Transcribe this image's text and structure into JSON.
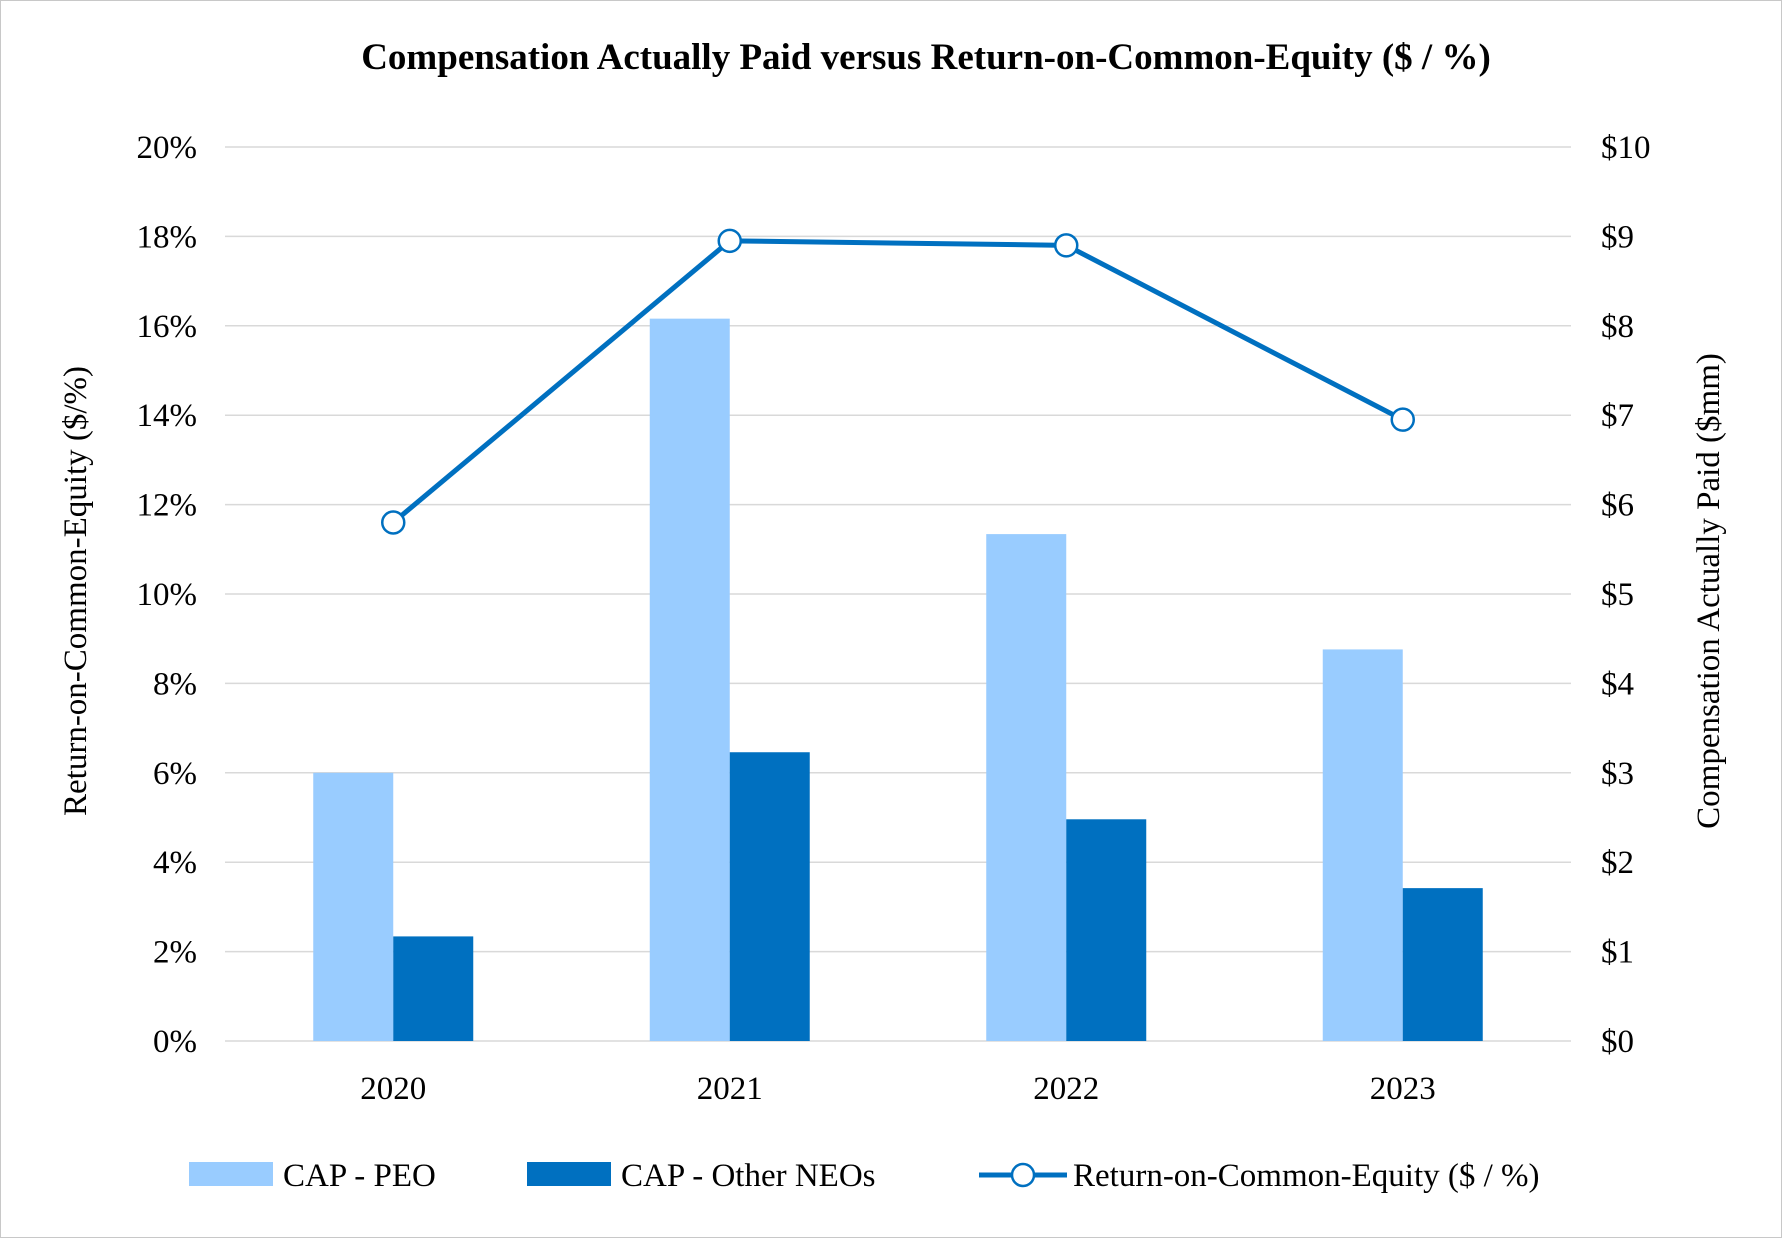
{
  "chart_data": {
    "type": "bar",
    "title": "Compensation Actually Paid versus Return-on-Common-Equity ($ / %)",
    "categories": [
      "2020",
      "2021",
      "2022",
      "2023"
    ],
    "left_axis": {
      "label": "Return-on-Common-Equity ($/%)",
      "range": [
        0,
        20
      ],
      "tick_values": [
        0,
        2,
        4,
        6,
        8,
        10,
        12,
        14,
        16,
        18,
        20
      ],
      "tick_labels": [
        "0%",
        "2%",
        "4%",
        "6%",
        "8%",
        "10%",
        "12%",
        "14%",
        "16%",
        "18%",
        "20%"
      ]
    },
    "right_axis": {
      "label": "Compensation Actually Paid ($mm)",
      "range": [
        0,
        10
      ],
      "tick_values": [
        0,
        1,
        2,
        3,
        4,
        5,
        6,
        7,
        8,
        9,
        10
      ],
      "tick_labels": [
        "$0",
        "$1",
        "$2",
        "$3",
        "$4",
        "$5",
        "$6",
        "$7",
        "$8",
        "$9",
        "$10"
      ]
    },
    "series": [
      {
        "name": "CAP - PEO",
        "type": "bar",
        "axis": "right",
        "color": "#99ccff",
        "values": [
          3.0,
          8.08,
          5.67,
          4.38
        ]
      },
      {
        "name": "CAP - Other NEOs",
        "type": "bar",
        "axis": "right",
        "color": "#0070c0",
        "values": [
          1.17,
          3.23,
          2.48,
          1.71
        ]
      },
      {
        "name": "Return-on-Common-Equity ($ / %)",
        "type": "line",
        "axis": "left",
        "color": "#0070c0",
        "marker": "open-circle",
        "values": [
          11.6,
          17.9,
          17.8,
          13.9
        ]
      }
    ],
    "gridlines": true,
    "legend_position": "bottom"
  }
}
